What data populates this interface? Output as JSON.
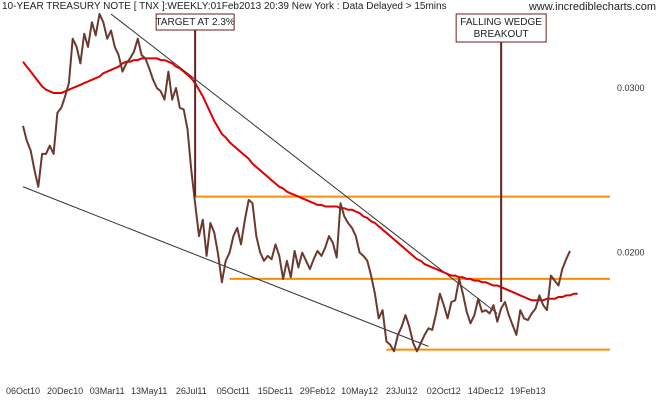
{
  "header": {
    "title": "10-YEAR TREASURY NOTE [ TNX ]:WEEKLY:01Feb2013 20:39 New York : Data Delayed > 15mins",
    "site": "www.incrediblecharts.com"
  },
  "colors": {
    "price": "#6b3a2e",
    "moving_average": "#dd0000",
    "support_resistance": "#ff8c00",
    "trendline": "#333333",
    "callout_border": "#6b1f1f"
  },
  "chart_data": {
    "type": "line",
    "title": "10-YEAR TREASURY NOTE [ TNX ]:WEEKLY:01Feb2013 20:39 New York : Data Delayed > 15mins",
    "x_tick_labels": [
      "06Oct10",
      "20Dec10",
      "03Mar11",
      "13May11",
      "26Jul11",
      "05Oct11",
      "15Dec11",
      "29Feb12",
      "10May12",
      "23Jul12",
      "02Oct12",
      "14Dec12",
      "19Feb13"
    ],
    "y_tick_labels": [
      "0.0300",
      "0.0200"
    ],
    "ylim": [
      0.0125,
      0.0345
    ],
    "grid": false,
    "series": [
      {
        "values": [
          0.0277,
          0.0268,
          0.0262,
          0.025,
          0.024,
          0.026,
          0.026,
          0.0265,
          0.026,
          0.0285,
          0.0288,
          0.0295,
          0.0303,
          0.033,
          0.0325,
          0.0315,
          0.0333,
          0.0325,
          0.034,
          0.0332,
          0.0345,
          0.034,
          0.033,
          0.0335,
          0.0325,
          0.032,
          0.031,
          0.0315,
          0.0318,
          0.0322,
          0.033,
          0.032,
          0.0318,
          0.0312,
          0.0305,
          0.03,
          0.0298,
          0.0293,
          0.031,
          0.0293,
          0.03,
          0.0288,
          0.0287,
          0.0275,
          0.025,
          0.023,
          0.021,
          0.022,
          0.0198,
          0.0218,
          0.0212,
          0.0199,
          0.0182,
          0.0195,
          0.02,
          0.021,
          0.0215,
          0.0205,
          0.022,
          0.0232,
          0.023,
          0.021,
          0.02,
          0.0195,
          0.0198,
          0.0196,
          0.0205,
          0.0198,
          0.0184,
          0.0195,
          0.0185,
          0.0201,
          0.0191,
          0.02,
          0.0195,
          0.019,
          0.0196,
          0.0201,
          0.0198,
          0.0203,
          0.021,
          0.0206,
          0.0197,
          0.023,
          0.0222,
          0.0218,
          0.0215,
          0.021,
          0.02,
          0.0198,
          0.0195,
          0.0186,
          0.0175,
          0.016,
          0.0165,
          0.0146,
          0.0144,
          0.014,
          0.015,
          0.0155,
          0.0162,
          0.0155,
          0.0145,
          0.014,
          0.0145,
          0.015,
          0.0154,
          0.0153,
          0.0163,
          0.0175,
          0.0168,
          0.016,
          0.017,
          0.0171,
          0.0184,
          0.0175,
          0.0164,
          0.0157,
          0.0162,
          0.0172,
          0.0164,
          0.0165,
          0.0163,
          0.0168,
          0.0158,
          0.0166,
          0.017,
          0.0162,
          0.0156,
          0.015,
          0.0165,
          0.016,
          0.0159,
          0.0163,
          0.0166,
          0.0174,
          0.0168,
          0.0165,
          0.0186,
          0.0183,
          0.018,
          0.019,
          0.0196,
          0.0201
        ]
      },
      {
        "values": [
          0.0316,
          0.0313,
          0.031,
          0.0307,
          0.0304,
          0.0301,
          0.0299,
          0.0298,
          0.0297,
          0.0297,
          0.0297,
          0.0298,
          0.0299,
          0.03,
          0.0301,
          0.0302,
          0.0303,
          0.0304,
          0.0305,
          0.0306,
          0.0307,
          0.0309,
          0.031,
          0.0311,
          0.0312,
          0.0313,
          0.0315,
          0.0316,
          0.0316,
          0.0317,
          0.0317,
          0.0318,
          0.0318,
          0.0318,
          0.0318,
          0.0318,
          0.0317,
          0.0317,
          0.0316,
          0.0315,
          0.0313,
          0.0312,
          0.031,
          0.0308,
          0.0306,
          0.0303,
          0.0299,
          0.0295,
          0.029,
          0.0285,
          0.028,
          0.0276,
          0.0272,
          0.027,
          0.0267,
          0.0265,
          0.0263,
          0.0261,
          0.0259,
          0.0257,
          0.0254,
          0.0252,
          0.025,
          0.0248,
          0.0246,
          0.0244,
          0.0242,
          0.024,
          0.0239,
          0.0237,
          0.0236,
          0.0235,
          0.0234,
          0.0233,
          0.0232,
          0.0231,
          0.023,
          0.0229,
          0.0229,
          0.0228,
          0.0228,
          0.0228,
          0.0228,
          0.0227,
          0.0227,
          0.0226,
          0.0226,
          0.0225,
          0.0224,
          0.0222,
          0.0221,
          0.0219,
          0.0218,
          0.0216,
          0.0214,
          0.0212,
          0.021,
          0.0208,
          0.0206,
          0.0204,
          0.0202,
          0.02,
          0.0198,
          0.0196,
          0.0195,
          0.0193,
          0.0192,
          0.0191,
          0.019,
          0.0189,
          0.0188,
          0.0187,
          0.0186,
          0.0186,
          0.0185,
          0.0185,
          0.0184,
          0.0184,
          0.0183,
          0.0183,
          0.0182,
          0.0182,
          0.0181,
          0.018,
          0.018,
          0.0179,
          0.0178,
          0.0177,
          0.0176,
          0.0175,
          0.0174,
          0.0173,
          0.0172,
          0.0171,
          0.0171,
          0.0171,
          0.0171,
          0.0172,
          0.0172,
          0.0172,
          0.0173,
          0.0173,
          0.0174,
          0.0174,
          0.0175,
          0.0175
        ]
      }
    ],
    "horizontal_lines": [
      {
        "y": 0.0234,
        "x_start": 45
      },
      {
        "y": 0.0184,
        "x_start": 54
      },
      {
        "y": 0.0141,
        "x_start": 95
      }
    ],
    "trendlines": [
      {
        "x": [
          0,
          106
        ],
        "y": [
          0.024,
          0.0143
        ]
      },
      {
        "x": [
          23,
          124
        ],
        "y": [
          0.0345,
          0.0163
        ]
      }
    ],
    "annotations": [
      {
        "text": [
          "TARGET AT 2.3%"
        ],
        "x": 45,
        "pointer_to": 0.0234
      },
      {
        "text": [
          "FALLING WEDGE",
          "BREAKOUT"
        ],
        "x": 125,
        "pointer_to": 0.017
      }
    ]
  }
}
